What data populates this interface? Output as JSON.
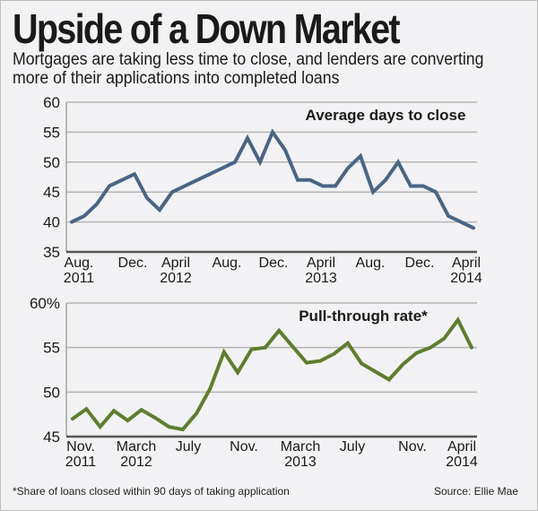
{
  "header": {
    "title": "Upside of a Down Market",
    "subtitle": "Mortgages are taking less time to close, and lenders are converting more of their applications into completed loans"
  },
  "footer": {
    "note": "*Share of loans closed within 90 days of taking application",
    "source": "Source: Ellie Mae"
  },
  "colors": {
    "days_line": "#4a6584",
    "rate_line": "#5f7d2f",
    "grid": "#b5b5b5",
    "axis": "#555555"
  },
  "chart_data": [
    {
      "type": "line",
      "title": "Average days to close",
      "xlabel": "",
      "ylabel": "",
      "ylim": [
        35,
        60
      ],
      "yticks": [
        "60",
        "55",
        "50",
        "45",
        "40",
        "35"
      ],
      "ytick_values": [
        60,
        55,
        50,
        45,
        40,
        35
      ],
      "xtick_labels": [
        {
          "line1": "Aug.",
          "line2": "2011",
          "index": 0
        },
        {
          "line1": "Dec.",
          "line2": "",
          "index": 4
        },
        {
          "line1": "April",
          "line2": "2012",
          "index": 8
        },
        {
          "line1": "Aug.",
          "line2": "",
          "index": 12
        },
        {
          "line1": "Dec.",
          "line2": "",
          "index": 16
        },
        {
          "line1": "April",
          "line2": "2013",
          "index": 20
        },
        {
          "line1": "Aug.",
          "line2": "",
          "index": 24
        },
        {
          "line1": "Dec.",
          "line2": "",
          "index": 28
        },
        {
          "line1": "April",
          "line2": "2014",
          "index": 32
        }
      ],
      "grid": true,
      "series": [
        {
          "name": "Average days to close",
          "x": [
            "2011-08",
            "2011-09",
            "2011-10",
            "2011-11",
            "2011-12",
            "2012-01",
            "2012-02",
            "2012-03",
            "2012-04",
            "2012-05",
            "2012-06",
            "2012-07",
            "2012-08",
            "2012-09",
            "2012-10",
            "2012-11",
            "2012-12",
            "2013-01",
            "2013-02",
            "2013-03",
            "2013-04",
            "2013-05",
            "2013-06",
            "2013-07",
            "2013-08",
            "2013-09",
            "2013-10",
            "2013-11",
            "2013-12",
            "2014-01",
            "2014-02",
            "2014-03",
            "2014-04"
          ],
          "values": [
            40,
            41,
            43,
            46,
            47,
            48,
            44,
            42,
            45,
            46,
            47,
            48,
            49,
            50,
            54,
            50,
            55,
            52,
            47,
            47,
            46,
            46,
            49,
            51,
            45,
            47,
            50,
            46,
            46,
            45,
            41,
            40,
            39
          ]
        }
      ]
    },
    {
      "type": "line",
      "title": "Pull-through rate*",
      "xlabel": "",
      "ylabel": "",
      "ylim": [
        45,
        60
      ],
      "yticks": [
        "60%",
        "55",
        "50",
        "45"
      ],
      "ytick_values": [
        60,
        55,
        50,
        45
      ],
      "xtick_labels": [
        {
          "line1": "Nov.",
          "line2": "2011",
          "index": 0
        },
        {
          "line1": "March",
          "line2": "2012",
          "index": 4
        },
        {
          "line1": "July",
          "line2": "",
          "index": 8
        },
        {
          "line1": "Nov.",
          "line2": "",
          "index": 12
        },
        {
          "line1": "March",
          "line2": "2013",
          "index": 16
        },
        {
          "line1": "July",
          "line2": "",
          "index": 20
        },
        {
          "line1": "Nov.",
          "line2": "",
          "index": 24
        },
        {
          "line1": "April",
          "line2": "2014",
          "index": 29
        }
      ],
      "grid": true,
      "series": [
        {
          "name": "Pull-through rate",
          "values": [
            47.0,
            48.1,
            46.1,
            47.9,
            46.8,
            48.0,
            47.1,
            46.1,
            45.8,
            47.6,
            50.4,
            54.5,
            52.2,
            54.8,
            55.0,
            56.9,
            55.1,
            53.3,
            53.5,
            54.3,
            55.5,
            53.2,
            52.3,
            51.4,
            53.1,
            54.4,
            55.0,
            56.0,
            58.1,
            55.0
          ]
        }
      ]
    }
  ]
}
